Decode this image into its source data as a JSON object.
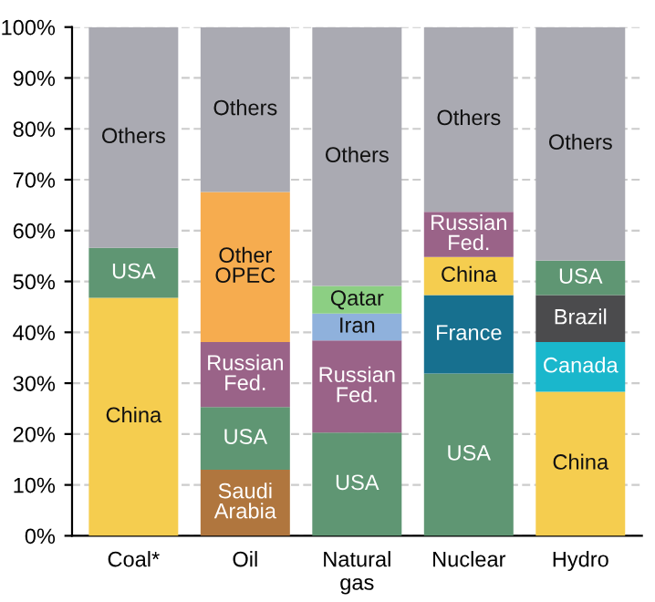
{
  "chart_data": {
    "type": "bar",
    "stacked": true,
    "categories": [
      "Coal*",
      "Oil",
      "Natural\ngas",
      "Nuclear",
      "Hydro"
    ],
    "series": [
      {
        "values": [
          46.8,
          13.0,
          20.3,
          31.9,
          28.3
        ],
        "colors": [
          "#f5cd4f",
          "#b0763e",
          "#5f9673",
          "#5f9673",
          "#f5cd4f"
        ],
        "value_labels": [
          "China",
          "Saudi\nArabia",
          "USA",
          "USA",
          "China"
        ]
      },
      {
        "values": [
          9.8,
          12.3,
          18.1,
          15.4,
          9.8
        ],
        "colors": [
          "#5f9673",
          "#5f9673",
          "#9a6388",
          "#17708f",
          "#1ab7cc"
        ],
        "value_labels": [
          "USA",
          "USA",
          "Russian\nFed.",
          "France",
          "Canada"
        ]
      },
      {
        "values": [
          null,
          12.8,
          5.3,
          7.5,
          9.2
        ],
        "colors": [
          null,
          "#9a6388",
          "#8fb1dc",
          "#f5cd4f",
          "#4b4b4d"
        ],
        "value_labels": [
          null,
          "Russian\nFed.",
          "Iran",
          "China",
          "Brazil"
        ]
      },
      {
        "values": [
          null,
          29.5,
          5.4,
          8.9,
          6.8
        ],
        "colors": [
          null,
          "#f6ac4f",
          "#8ccf83",
          "#9a6388",
          "#5f9673"
        ],
        "value_labels": [
          null,
          "Other\nOPEC",
          "Qatar",
          "Russian\nFed.",
          "USA"
        ]
      },
      {
        "values": [
          43.4,
          32.4,
          50.9,
          36.3,
          45.9
        ],
        "colors": [
          "#aaaab2",
          "#aaaab2",
          "#aaaab2",
          "#aaaab2",
          "#aaaab2"
        ],
        "value_labels": [
          "Others",
          "Others",
          "Others",
          "Others",
          "Others"
        ]
      }
    ],
    "ylim": [
      0,
      100
    ],
    "yticks": [
      {
        "value": 0,
        "label": "0%"
      },
      {
        "value": 10,
        "label": "10%"
      },
      {
        "value": 20,
        "label": "20%"
      },
      {
        "value": 30,
        "label": "30%"
      },
      {
        "value": 40,
        "label": "40%"
      },
      {
        "value": 50,
        "label": "50%"
      },
      {
        "value": 60,
        "label": "60%"
      },
      {
        "value": 70,
        "label": "70%"
      },
      {
        "value": 80,
        "label": "80%"
      },
      {
        "value": 90,
        "label": "90%"
      },
      {
        "value": 100,
        "label": "100%"
      }
    ],
    "grid": "y"
  }
}
